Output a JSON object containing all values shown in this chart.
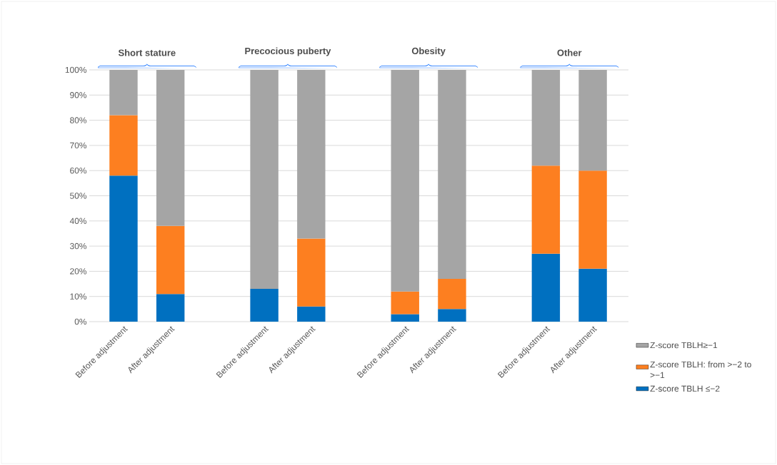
{
  "chart_data": {
    "type": "bar",
    "stacked": true,
    "categories": [
      "Before adjustment",
      "After adjustment",
      null,
      "Before adjustment",
      "After adjustment",
      null,
      "Before adjustment",
      "After adjustment",
      null,
      "Before adjustment",
      "After adjustment"
    ],
    "series": [
      {
        "name": "Z-score TBLH ≤−2",
        "color": "#0070c0",
        "values": [
          58,
          11,
          null,
          13,
          6,
          null,
          3,
          5,
          null,
          27,
          21
        ]
      },
      {
        "name": "Z-score TBLH: from >−2 to >−1",
        "color": "#fd7f20",
        "values": [
          24,
          27,
          null,
          0,
          27,
          null,
          9,
          12,
          null,
          35,
          39
        ]
      },
      {
        "name": "Z-score TBLH≥−1",
        "color": "#a5a5a5",
        "values": [
          18,
          62,
          null,
          87,
          67,
          null,
          88,
          83,
          null,
          38,
          40
        ]
      }
    ],
    "annotations": [
      "Short stature",
      "Precocious puberty",
      "Obesity",
      "Other"
    ],
    "ylim": [
      0,
      100
    ],
    "yticks": [
      {
        "value": 0,
        "label": "0%"
      },
      {
        "value": 10,
        "label": "10%"
      },
      {
        "value": 20,
        "label": "20%"
      },
      {
        "value": 30,
        "label": "30%"
      },
      {
        "value": 40,
        "label": "40%"
      },
      {
        "value": 50,
        "label": "50%"
      },
      {
        "value": 60,
        "label": "60%"
      },
      {
        "value": 70,
        "label": "70%"
      },
      {
        "value": 80,
        "label": "80%"
      },
      {
        "value": 90,
        "label": "90%"
      },
      {
        "value": 100,
        "label": "100%"
      }
    ],
    "grid": "y",
    "legend": "right"
  }
}
